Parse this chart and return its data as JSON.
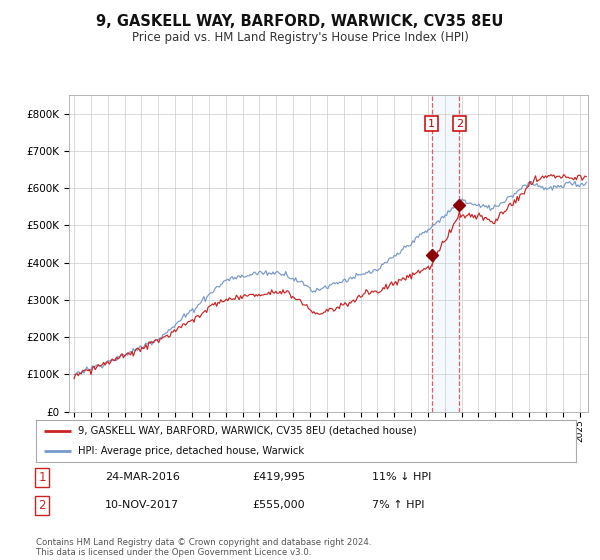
{
  "title": "9, GASKELL WAY, BARFORD, WARWICK, CV35 8EU",
  "subtitle": "Price paid vs. HM Land Registry's House Price Index (HPI)",
  "ylim": [
    0,
    850000
  ],
  "xlim_start": 1994.7,
  "xlim_end": 2025.5,
  "sale1_date": 2016.22,
  "sale1_price": 419995,
  "sale1_label": "1",
  "sale1_text": "24-MAR-2016",
  "sale1_price_text": "£419,995",
  "sale1_hpi_text": "11% ↓ HPI",
  "sale2_date": 2017.86,
  "sale2_price": 555000,
  "sale2_label": "2",
  "sale2_text": "10-NOV-2017",
  "sale2_price_text": "£555,000",
  "sale2_hpi_text": "7% ↑ HPI",
  "hpi_line_color": "#7799cc",
  "sale_line_color": "#cc2222",
  "marker_color": "#8b0000",
  "vline_color": "#dd4444",
  "highlight_color": "#ddeeff",
  "grid_color": "#cccccc",
  "bg_color": "#ffffff",
  "legend_label1": "9, GASKELL WAY, BARFORD, WARWICK, CV35 8EU (detached house)",
  "legend_label2": "HPI: Average price, detached house, Warwick",
  "footer": "Contains HM Land Registry data © Crown copyright and database right 2024.\nThis data is licensed under the Open Government Licence v3.0.",
  "yticks": [
    0,
    100000,
    200000,
    300000,
    400000,
    500000,
    600000,
    700000,
    800000
  ],
  "ytick_labels": [
    "£0",
    "£100K",
    "£200K",
    "£300K",
    "£400K",
    "£500K",
    "£600K",
    "£700K",
    "£800K"
  ],
  "xticks": [
    1995,
    1996,
    1997,
    1998,
    1999,
    2000,
    2001,
    2002,
    2003,
    2004,
    2005,
    2006,
    2007,
    2008,
    2009,
    2010,
    2011,
    2012,
    2013,
    2014,
    2015,
    2016,
    2017,
    2018,
    2019,
    2020,
    2021,
    2022,
    2023,
    2024,
    2025
  ]
}
